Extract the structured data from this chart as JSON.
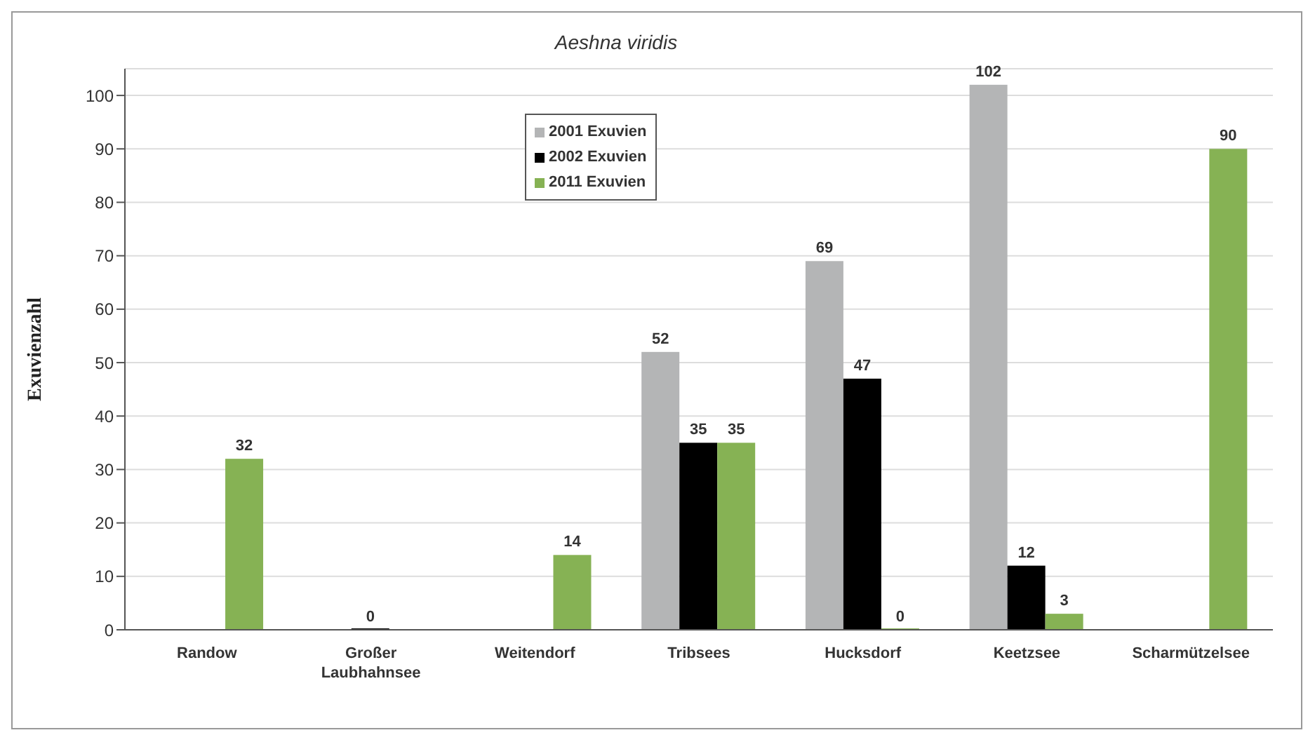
{
  "chart_data": {
    "type": "bar",
    "title": "Aeshna viridis",
    "ylabel": "Exuvienzahl",
    "categories": [
      "Randow",
      "Großer Laubhahnsee",
      "Weitendorf",
      "Tribsees",
      "Hucksdorf",
      "Keetzsee",
      "Scharmützelsee"
    ],
    "series": [
      {
        "name": "2001 Exuvien",
        "color": "#b4b5b6",
        "values": [
          null,
          null,
          null,
          52,
          69,
          102,
          null
        ]
      },
      {
        "name": "2002 Exuvien",
        "color": "#000000",
        "values": [
          null,
          0,
          null,
          35,
          47,
          12,
          null
        ]
      },
      {
        "name": "2011 Exuvien",
        "color": "#86b254",
        "values": [
          32,
          null,
          14,
          35,
          0,
          3,
          90
        ]
      }
    ],
    "ylim": [
      0,
      105
    ],
    "yticks": [
      0,
      10,
      20,
      30,
      40,
      50,
      60,
      70,
      80,
      90,
      100
    ],
    "grid": "y",
    "legend": "top left",
    "data_labels": true
  }
}
